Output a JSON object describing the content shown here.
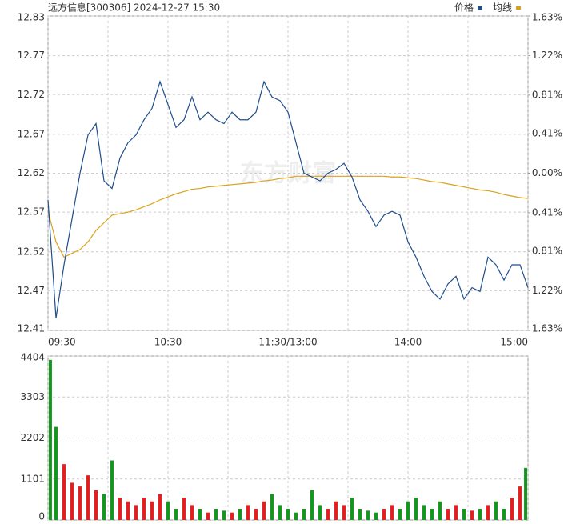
{
  "chart_data": [
    {
      "type": "line",
      "title": "远方信息[300306] 2024-12-27 15:30",
      "watermark": "东方财富",
      "xlim": [
        0,
        240
      ],
      "xticks": [
        {
          "value": 0,
          "label": "09:30"
        },
        {
          "value": 60,
          "label": "10:30"
        },
        {
          "value": 120,
          "label": "11:30/13:00"
        },
        {
          "value": 180,
          "label": "14:00"
        },
        {
          "value": 240,
          "label": "15:00"
        }
      ],
      "xminor": [
        30,
        90,
        150,
        210
      ],
      "x": [
        0,
        4,
        8,
        12,
        16,
        20,
        24,
        28,
        32,
        36,
        40,
        44,
        48,
        52,
        56,
        60,
        64,
        68,
        72,
        76,
        80,
        84,
        88,
        92,
        96,
        100,
        104,
        108,
        112,
        116,
        120,
        124,
        128,
        132,
        136,
        140,
        144,
        148,
        152,
        156,
        160,
        164,
        168,
        172,
        176,
        180,
        184,
        188,
        192,
        196,
        200,
        204,
        208,
        212,
        216,
        220,
        224,
        228,
        232,
        236,
        240
      ],
      "ylim": [
        12.414,
        12.826
      ],
      "yticks": [
        {
          "value": 12.414,
          "label": "12.41"
        },
        {
          "value": 12.466,
          "label": "12.47"
        },
        {
          "value": 12.517,
          "label": "12.52"
        },
        {
          "value": 12.569,
          "label": "12.57"
        },
        {
          "value": 12.62,
          "label": "12.62"
        },
        {
          "value": 12.671,
          "label": "12.67"
        },
        {
          "value": 12.723,
          "label": "12.72"
        },
        {
          "value": 12.774,
          "label": "12.77"
        },
        {
          "value": 12.826,
          "label": "12.83"
        }
      ],
      "y2lim": [
        -1.63,
        1.63
      ],
      "y2ticks": [
        {
          "value": -1.63,
          "label": "1.63%"
        },
        {
          "value": -1.22,
          "label": "1.22%"
        },
        {
          "value": -0.81,
          "label": "0.81%"
        },
        {
          "value": -0.41,
          "label": "0.41%"
        },
        {
          "value": 0,
          "label": "0.00%"
        },
        {
          "value": 0.41,
          "label": "0.41%"
        },
        {
          "value": 0.81,
          "label": "0.81%"
        },
        {
          "value": 1.22,
          "label": "1.22%"
        },
        {
          "value": 1.63,
          "label": "1.63%"
        }
      ],
      "up_color": "#e02020",
      "down_color": "#14961e",
      "series": [
        {
          "name": "价格",
          "color": "#1f4e8c",
          "values": [
            12.585,
            12.43,
            12.5,
            12.56,
            12.62,
            12.67,
            12.685,
            12.61,
            12.6,
            12.64,
            12.66,
            12.67,
            12.69,
            12.705,
            12.74,
            12.71,
            12.68,
            12.69,
            12.72,
            12.69,
            12.7,
            12.69,
            12.685,
            12.7,
            12.69,
            12.69,
            12.7,
            12.74,
            12.72,
            12.715,
            12.7,
            12.66,
            12.62,
            12.615,
            12.61,
            12.62,
            12.625,
            12.633,
            12.615,
            12.585,
            12.57,
            12.55,
            12.565,
            12.57,
            12.565,
            12.53,
            12.51,
            12.485,
            12.465,
            12.455,
            12.475,
            12.485,
            12.455,
            12.47,
            12.465,
            12.51,
            12.5,
            12.48,
            12.5,
            12.5,
            12.47
          ]
        },
        {
          "name": "均线",
          "color": "#d9a21b",
          "values": [
            12.57,
            12.53,
            12.51,
            12.515,
            12.52,
            12.53,
            12.545,
            12.555,
            12.565,
            12.567,
            12.569,
            12.572,
            12.576,
            12.58,
            12.585,
            12.589,
            12.593,
            12.596,
            12.599,
            12.6,
            12.602,
            12.603,
            12.604,
            12.605,
            12.606,
            12.607,
            12.608,
            12.61,
            12.611,
            12.613,
            12.614,
            12.616,
            12.616,
            12.616,
            12.616,
            12.616,
            12.616,
            12.616,
            12.616,
            12.616,
            12.616,
            12.616,
            12.616,
            12.615,
            12.615,
            12.614,
            12.613,
            12.611,
            12.609,
            12.608,
            12.606,
            12.604,
            12.602,
            12.6,
            12.598,
            12.597,
            12.595,
            12.592,
            12.59,
            12.588,
            12.587
          ]
        }
      ]
    },
    {
      "type": "bar",
      "ylim": [
        0,
        4404
      ],
      "yticks": [
        0,
        1101,
        2202,
        3303,
        4404
      ],
      "values": [
        4300,
        2500,
        1500,
        1000,
        900,
        1200,
        800,
        700,
        1600,
        600,
        500,
        400,
        600,
        500,
        700,
        500,
        300,
        600,
        400,
        300,
        200,
        300,
        250,
        200,
        300,
        400,
        300,
        500,
        700,
        400,
        300,
        200,
        300,
        800,
        400,
        300,
        500,
        400,
        600,
        300,
        250,
        200,
        300,
        400,
        300,
        500,
        600,
        400,
        300,
        500,
        300,
        400,
        300,
        250,
        300,
        400,
        500,
        300,
        600,
        900,
        1400
      ]
    }
  ]
}
